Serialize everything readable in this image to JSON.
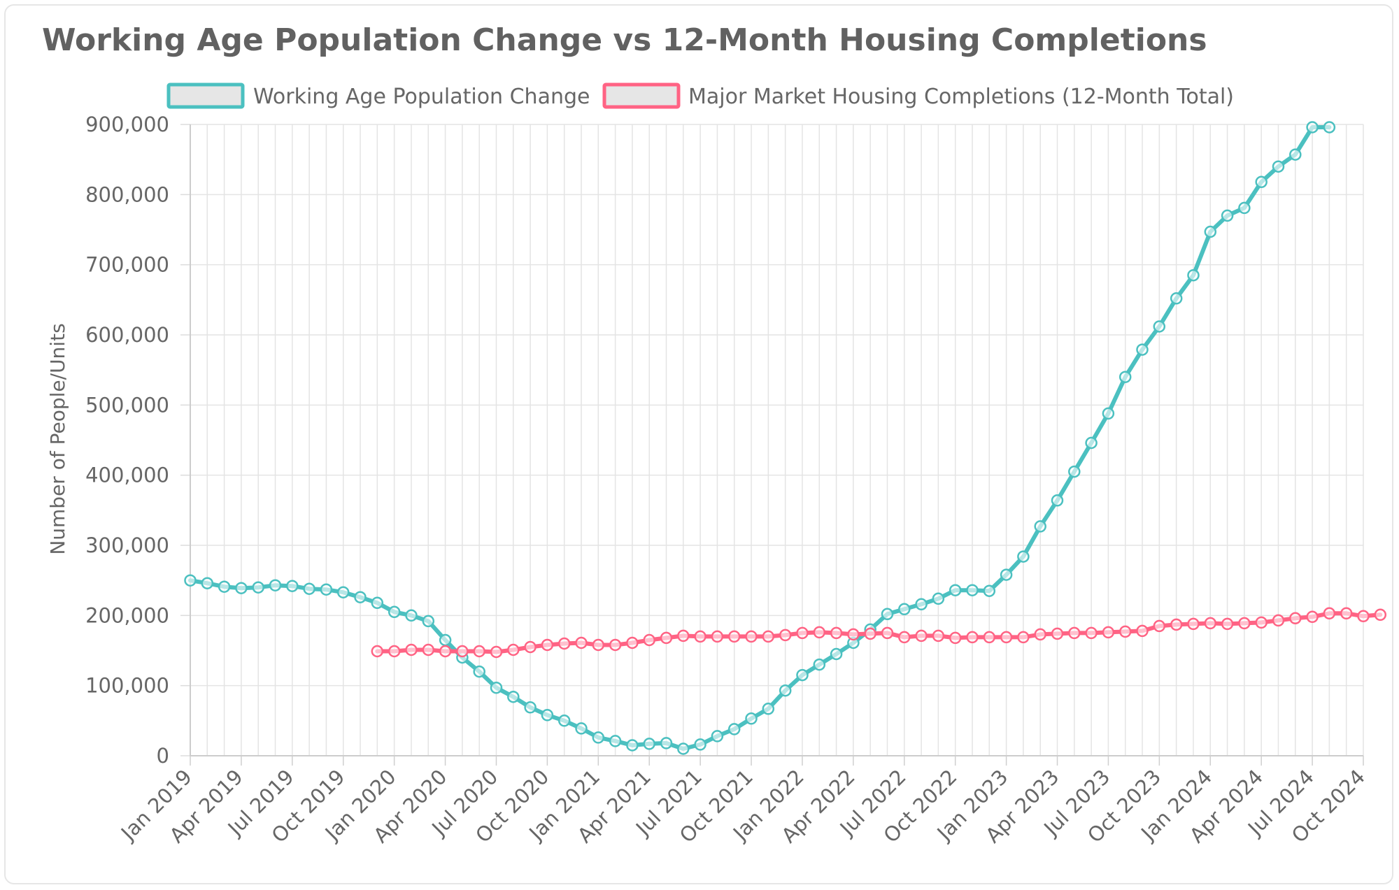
{
  "chart_data": {
    "type": "line",
    "title": "Working Age Population Change vs 12-Month Housing Completions",
    "xlabel": "",
    "ylabel": "Number of People/Units",
    "ylim": [
      0,
      900000
    ],
    "y_ticks": [
      "0",
      "100,000",
      "200,000",
      "300,000",
      "400,000",
      "500,000",
      "600,000",
      "700,000",
      "800,000",
      "900,000"
    ],
    "x_tick_labels": [
      "Jan 2019",
      "Apr 2019",
      "Jul 2019",
      "Oct 2019",
      "Jan 2020",
      "Apr 2020",
      "Jul 2020",
      "Oct 2020",
      "Jan 2021",
      "Apr 2021",
      "Jul 2021",
      "Oct 2021",
      "Jan 2022",
      "Apr 2022",
      "Jul 2022",
      "Oct 2022",
      "Jan 2023",
      "Apr 2023",
      "Jul 2023",
      "Oct 2023",
      "Jan 2024",
      "Apr 2024",
      "Jul 2024",
      "Oct 2024"
    ],
    "x_range_months": [
      0,
      69
    ],
    "x_start": "Jan 2019",
    "x_step": "1 month",
    "legend_position": "top",
    "series": [
      {
        "name": "Working Age Population Change",
        "color": "#4bc0c0",
        "start_index": 0,
        "values": [
          250000,
          246000,
          241000,
          239000,
          240000,
          243000,
          242000,
          238000,
          237000,
          233000,
          226000,
          218000,
          205000,
          200000,
          192000,
          165000,
          140000,
          120000,
          97000,
          84000,
          69000,
          58000,
          50000,
          39000,
          26000,
          21000,
          15000,
          17000,
          18000,
          10000,
          16000,
          28000,
          38000,
          53000,
          67000,
          93000,
          115000,
          130000,
          145000,
          161000,
          180000,
          202000,
          209000,
          216000,
          224000,
          236000,
          236000,
          235000,
          258000,
          284000,
          327000,
          364000,
          405000,
          446000,
          488000,
          540000,
          579000,
          612000,
          652000,
          685000,
          747000,
          770000,
          781000,
          818000,
          840000,
          857000,
          896000,
          896000
        ]
      },
      {
        "name": "Major Market Housing Completions (12-Month Total)",
        "color": "#ff6384",
        "start_index": 11,
        "values": [
          149000,
          149000,
          151000,
          151000,
          149000,
          149000,
          149000,
          148000,
          151000,
          155000,
          158000,
          160000,
          161000,
          158000,
          158000,
          161000,
          165000,
          168000,
          171000,
          170000,
          170000,
          170000,
          170000,
          170000,
          172000,
          175000,
          176000,
          175000,
          173000,
          174000,
          175000,
          169000,
          171000,
          171000,
          168000,
          169000,
          169000,
          169000,
          169000,
          173000,
          174000,
          175000,
          175000,
          176000,
          177000,
          178000,
          185000,
          187000,
          188000,
          189000,
          188000,
          189000,
          190000,
          193000,
          196000,
          198000,
          203000,
          203000,
          199000,
          201000
        ]
      }
    ]
  }
}
